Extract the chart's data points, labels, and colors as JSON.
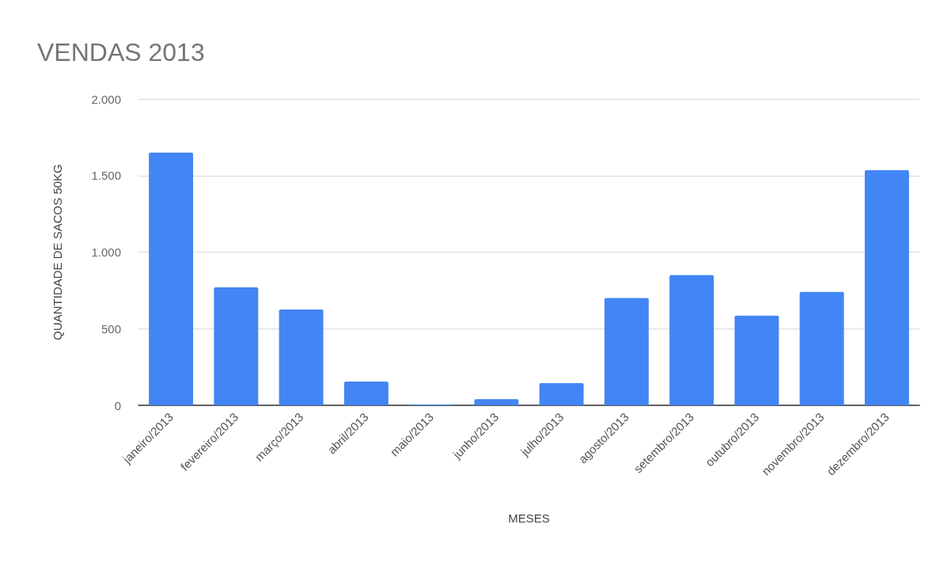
{
  "chart_data": {
    "type": "bar",
    "title": "VENDAS 2013",
    "xlabel": "MESES",
    "ylabel": "QUANTIDADE DE SACOS 50KG",
    "categories": [
      "janeiro/2013",
      "fevereiro/2013",
      "março/2013",
      "abril/2013",
      "maio/2013",
      "junho/2013",
      "julho/2013",
      "agosto/2013",
      "setembro/2013",
      "outubro/2013",
      "novembro/2013",
      "dezembro/2013"
    ],
    "values": [
      1650,
      770,
      625,
      155,
      5,
      40,
      145,
      700,
      850,
      585,
      740,
      1535
    ],
    "color": "#4285f4",
    "ylim": [
      0,
      2000
    ],
    "yticks": [
      {
        "value": 0,
        "label": "0"
      },
      {
        "value": 500,
        "label": "500"
      },
      {
        "value": 1000,
        "label": "1.000"
      },
      {
        "value": 1500,
        "label": "1.500"
      },
      {
        "value": 2000,
        "label": "2.000"
      }
    ],
    "grid": "y"
  }
}
